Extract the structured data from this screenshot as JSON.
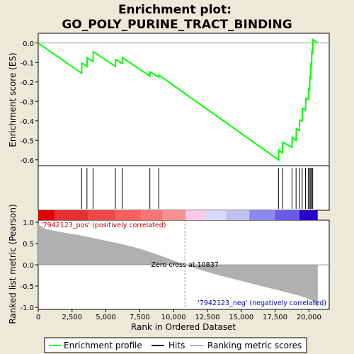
{
  "chart_data": {
    "type": "line",
    "title_line1": "Enrichment plot:",
    "title_line2": "GO_POLY_PURINE_TRACT_BINDING",
    "xlabel": "Rank in Ordered Dataset",
    "xlim": [
      0,
      21500
    ],
    "x_ticks": [
      0,
      2500,
      5000,
      7500,
      10000,
      12500,
      15000,
      17500,
      20000
    ],
    "x_tick_labels": [
      "0",
      "2,500",
      "5,000",
      "7,500",
      "10,000",
      "12,500",
      "15,000",
      "17,500",
      "20,000"
    ],
    "top_panel": {
      "ylabel": "Enrichment score (ES)",
      "ylim": [
        -0.63,
        0.05
      ],
      "y_ticks": [
        0.0,
        -0.1,
        -0.2,
        -0.3,
        -0.4,
        -0.5,
        -0.6
      ],
      "y_tick_labels": [
        "0.0",
        "-0.1",
        "-0.2",
        "-0.3",
        "-0.4",
        "-0.5",
        "-0.6"
      ],
      "series": [
        {
          "name": "Enrichment profile",
          "color": "#00ff00",
          "points": [
            [
              0,
              0.0
            ],
            [
              3200,
              -0.155
            ],
            [
              3220,
              -0.103
            ],
            [
              3600,
              -0.12
            ],
            [
              3620,
              -0.075
            ],
            [
              4050,
              -0.095
            ],
            [
              4070,
              -0.045
            ],
            [
              5700,
              -0.12
            ],
            [
              5720,
              -0.085
            ],
            [
              6200,
              -0.105
            ],
            [
              6220,
              -0.075
            ],
            [
              8250,
              -0.17
            ],
            [
              8270,
              -0.148
            ],
            [
              8900,
              -0.175
            ],
            [
              8920,
              -0.165
            ],
            [
              17750,
              -0.6
            ],
            [
              17770,
              -0.55
            ],
            [
              18050,
              -0.565
            ],
            [
              18070,
              -0.51
            ],
            [
              18750,
              -0.535
            ],
            [
              18770,
              -0.485
            ],
            [
              19050,
              -0.5
            ],
            [
              19070,
              -0.44
            ],
            [
              19300,
              -0.45
            ],
            [
              19320,
              -0.395
            ],
            [
              19500,
              -0.4
            ],
            [
              19520,
              -0.335
            ],
            [
              19750,
              -0.345
            ],
            [
              19770,
              -0.285
            ],
            [
              19950,
              -0.29
            ],
            [
              19970,
              -0.235
            ],
            [
              20050,
              -0.24
            ],
            [
              20070,
              -0.175
            ],
            [
              20130,
              -0.18
            ],
            [
              20150,
              -0.11
            ],
            [
              20200,
              -0.115
            ],
            [
              20220,
              -0.045
            ],
            [
              20280,
              -0.05
            ],
            [
              20300,
              0.018
            ],
            [
              20650,
              0.0
            ]
          ]
        }
      ]
    },
    "hits": [
      3200,
      3600,
      4050,
      5700,
      6200,
      8250,
      8900,
      17750,
      18050,
      18750,
      19050,
      19300,
      19500,
      19750,
      19950,
      20050,
      20130,
      20200,
      20280
    ],
    "hits_label": "Hits",
    "color_bar": [
      "#e00000",
      "#e83030",
      "#f04848",
      "#f86060",
      "#fa7676",
      "#fa9090",
      "#fbc8e8",
      "#d8d8f8",
      "#c0c0f4",
      "#8a8af0",
      "#6a5ae8",
      "#2800c8",
      "#4a10b0"
    ],
    "color_bar_ranks": [
      0,
      1200,
      3700,
      5700,
      7600,
      9200,
      10900,
      12400,
      13900,
      15600,
      17500,
      19300,
      20650
    ],
    "bottom_panel": {
      "ylabel": "Ranked list metric (Pearson)",
      "ylim": [
        -1.05,
        1.05
      ],
      "y_ticks": [
        1.0,
        0.5,
        0.0,
        -0.5,
        -1.0
      ],
      "y_tick_labels": [
        "1.0",
        "0.5",
        "0.0",
        "-0.5",
        "-1.0"
      ],
      "metric_color": "#b0b0b0",
      "metric_points": [
        [
          0,
          0.95
        ],
        [
          500,
          0.85
        ],
        [
          1500,
          0.78
        ],
        [
          3000,
          0.7
        ],
        [
          4500,
          0.6
        ],
        [
          6000,
          0.5
        ],
        [
          7500,
          0.38
        ],
        [
          9000,
          0.22
        ],
        [
          10000,
          0.1
        ],
        [
          10837,
          0.0
        ],
        [
          12000,
          -0.12
        ],
        [
          13500,
          -0.26
        ],
        [
          15000,
          -0.38
        ],
        [
          16500,
          -0.5
        ],
        [
          18000,
          -0.62
        ],
        [
          19000,
          -0.7
        ],
        [
          19800,
          -0.78
        ],
        [
          20300,
          -0.85
        ],
        [
          20650,
          -1.0
        ]
      ],
      "zero_cross_rank": 10837,
      "zero_cross_label": "Zero cross at 10837",
      "pos_label": "'7942123_pos' (positively correlated)",
      "neg_label": "'7942123_neg' (negatively correlated)",
      "pos_color": "#cc0000",
      "neg_color": "#0000cc"
    },
    "legend": {
      "placement": "bottom",
      "entries": [
        {
          "name": "Enrichment profile",
          "color": "#00ff00"
        },
        {
          "name": "Hits",
          "color": "#000000"
        },
        {
          "name": "Ranking metric scores",
          "color": "#b0b0b0"
        }
      ]
    }
  }
}
